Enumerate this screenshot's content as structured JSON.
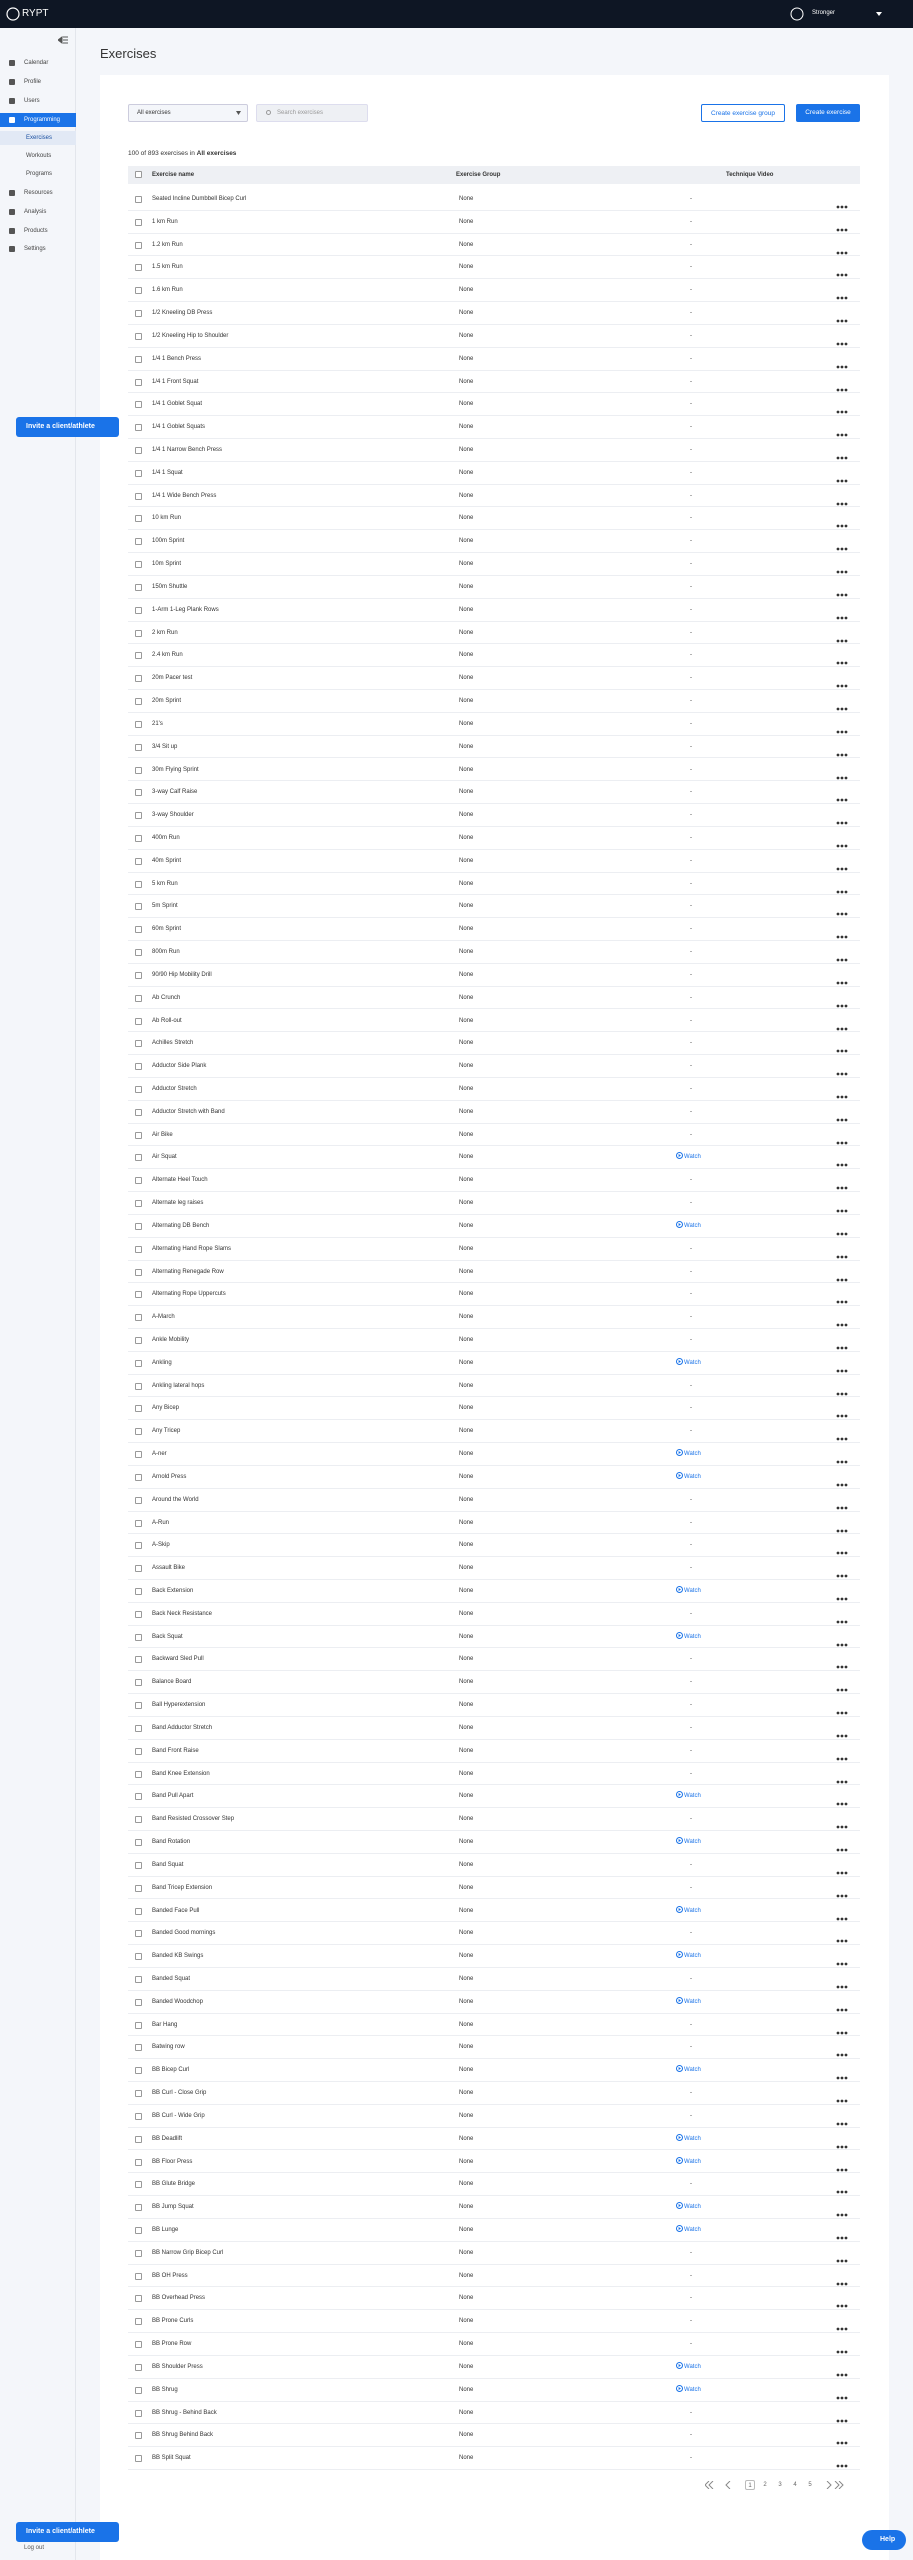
{
  "header": {
    "logo": "RYPT",
    "user": "Stronger"
  },
  "sidebar": {
    "items": [
      "Calendar",
      "Profile",
      "Users",
      "Programming",
      "Exercises",
      "Workouts",
      "Programs",
      "Resources",
      "Analysis",
      "Products",
      "Settings"
    ],
    "logout": "Log out"
  },
  "page": {
    "title": "Exercises",
    "filter": "All exercises",
    "search_placeholder": "Search exercises",
    "buttons": [
      "Create exercise group",
      "Create exercise"
    ],
    "count_text": "100 of 893 exercises in",
    "count_filter": "All exercises"
  },
  "table": {
    "columns": [
      "Exercise name",
      "Exercise Group",
      "Technique Video"
    ],
    "rows": [
      [
        "Seated Incline Dumbbell Bicep Curl",
        "None",
        "-"
      ],
      [
        "1 km Run",
        "None",
        "-"
      ],
      [
        "1.2 km Run",
        "None",
        "-"
      ],
      [
        "1.5 km Run",
        "None",
        "-"
      ],
      [
        "1.6 km Run",
        "None",
        "-"
      ],
      [
        "1/2 Kneeling DB Press",
        "None",
        "-"
      ],
      [
        "1/2 Kneeling Hip to Shoulder",
        "None",
        "-"
      ],
      [
        "1/4 1 Bench Press",
        "None",
        "-"
      ],
      [
        "1/4 1 Front Squat",
        "None",
        "-"
      ],
      [
        "1/4 1 Goblet Squat",
        "None",
        "-"
      ],
      [
        "1/4 1 Goblet Squats",
        "None",
        "-"
      ],
      [
        "1/4 1 Narrow Bench Press",
        "None",
        "-"
      ],
      [
        "1/4 1 Squat",
        "None",
        "-"
      ],
      [
        "1/4 1 Wide Bench Press",
        "None",
        "-"
      ],
      [
        "10 km Run",
        "None",
        "-"
      ],
      [
        "100m Sprint",
        "None",
        "-"
      ],
      [
        "10m Sprint",
        "None",
        "-"
      ],
      [
        "150m Shuttle",
        "None",
        "-"
      ],
      [
        "1-Arm 1-Leg Plank Rows",
        "None",
        "-"
      ],
      [
        "2 km Run",
        "None",
        "-"
      ],
      [
        "2.4 km Run",
        "None",
        "-"
      ],
      [
        "20m Pacer test",
        "None",
        "-"
      ],
      [
        "20m Sprint",
        "None",
        "-"
      ],
      [
        "21's",
        "None",
        "-"
      ],
      [
        "3/4 Sit up",
        "None",
        "-"
      ],
      [
        "30m Flying Sprint",
        "None",
        "-"
      ],
      [
        "3-way Calf Raise",
        "None",
        "-"
      ],
      [
        "3-way Shoulder",
        "None",
        "-"
      ],
      [
        "400m Run",
        "None",
        "-"
      ],
      [
        "40m Sprint",
        "None",
        "-"
      ],
      [
        "5 km Run",
        "None",
        "-"
      ],
      [
        "5m Sprint",
        "None",
        "-"
      ],
      [
        "60m Sprint",
        "None",
        "-"
      ],
      [
        "800m Run",
        "None",
        "-"
      ],
      [
        "90/90 Hip Mobility Drill",
        "None",
        "-"
      ],
      [
        "Ab Crunch",
        "None",
        "-"
      ],
      [
        "Ab Roll-out",
        "None",
        "-"
      ],
      [
        "Achilles Stretch",
        "None",
        "-"
      ],
      [
        "Adductor Side Plank",
        "None",
        "-"
      ],
      [
        "Adductor Stretch",
        "None",
        "-"
      ],
      [
        "Adductor Stretch with Band",
        "None",
        "-"
      ],
      [
        "Air Bike",
        "None",
        "-"
      ],
      [
        "Air Squat",
        "None",
        "Watch"
      ],
      [
        "Alternate Heel Touch",
        "None",
        "-"
      ],
      [
        "Alternate leg raises",
        "None",
        "-"
      ],
      [
        "Alternating DB Bench",
        "None",
        "Watch"
      ],
      [
        "Alternating Hand Rope Slams",
        "None",
        "-"
      ],
      [
        "Alternating Renegade Row",
        "None",
        "-"
      ],
      [
        "Alternating Rope Uppercuts",
        "None",
        "-"
      ],
      [
        "A-March",
        "None",
        "-"
      ],
      [
        "Ankle Mobility",
        "None",
        "-"
      ],
      [
        "Ankling",
        "None",
        "Watch"
      ],
      [
        "Ankling lateral hops",
        "None",
        "-"
      ],
      [
        "Any Bicep",
        "None",
        "-"
      ],
      [
        "Any Tricep",
        "None",
        "-"
      ],
      [
        "A-ner",
        "None",
        "Watch"
      ],
      [
        "Arnold Press",
        "None",
        "Watch"
      ],
      [
        "Around the World",
        "None",
        "-"
      ],
      [
        "A-Run",
        "None",
        "-"
      ],
      [
        "A-Skip",
        "None",
        "-"
      ],
      [
        "Assault Bike",
        "None",
        "-"
      ],
      [
        "Back Extension",
        "None",
        "Watch"
      ],
      [
        "Back Neck Resistance",
        "None",
        "-"
      ],
      [
        "Back Squat",
        "None",
        "Watch"
      ],
      [
        "Backward Sled Pull",
        "None",
        "-"
      ],
      [
        "Balance Board",
        "None",
        "-"
      ],
      [
        "Ball Hyperextension",
        "None",
        "-"
      ],
      [
        "Band Adductor Stretch",
        "None",
        "-"
      ],
      [
        "Band Front Raise",
        "None",
        "-"
      ],
      [
        "Band Knee Extension",
        "None",
        "-"
      ],
      [
        "Band Pull Apart",
        "None",
        "Watch"
      ],
      [
        "Band Resisted Crossover Step",
        "None",
        "-"
      ],
      [
        "Band Rotation",
        "None",
        "Watch"
      ],
      [
        "Band Squat",
        "None",
        "-"
      ],
      [
        "Band Tricep Extension",
        "None",
        "-"
      ],
      [
        "Banded Face Pull",
        "None",
        "Watch"
      ],
      [
        "Banded Good mornings",
        "None",
        "-"
      ],
      [
        "Banded KB Swings",
        "None",
        "Watch"
      ],
      [
        "Banded Squat",
        "None",
        "-"
      ],
      [
        "Banded Woodchop",
        "None",
        "Watch"
      ],
      [
        "Bar Hang",
        "None",
        "-"
      ],
      [
        "Batwing row",
        "None",
        "-"
      ],
      [
        "BB Bicep Curl",
        "None",
        "Watch"
      ],
      [
        "BB Curl - Close Grip",
        "None",
        "-"
      ],
      [
        "BB Curl - Wide Grip",
        "None",
        "-"
      ],
      [
        "BB Deadlift",
        "None",
        "Watch"
      ],
      [
        "BB Floor Press",
        "None",
        "Watch"
      ],
      [
        "BB Glute Bridge",
        "None",
        "-"
      ],
      [
        "BB Jump Squat",
        "None",
        "Watch"
      ],
      [
        "BB Lunge",
        "None",
        "Watch"
      ],
      [
        "BB Narrow Grip Bicep Curl",
        "None",
        "-"
      ],
      [
        "BB OH Press",
        "None",
        "-"
      ],
      [
        "BB Overhead Press",
        "None",
        "-"
      ],
      [
        "BB Prone Curls",
        "None",
        "-"
      ],
      [
        "BB Prone Row",
        "None",
        "-"
      ],
      [
        "BB Shoulder Press",
        "None",
        "Watch"
      ],
      [
        "BB Shrug",
        "None",
        "Watch"
      ],
      [
        "BB Shrug - Behind Back",
        "None",
        "-"
      ],
      [
        "BB Shrug Behind Back",
        "None",
        "-"
      ],
      [
        "BB Split Squat",
        "None",
        "-"
      ]
    ]
  },
  "pagination": {
    "pages": [
      "1",
      "2",
      "3",
      "4",
      "5"
    ]
  },
  "floating": {
    "invite": "Invite a client/athlete",
    "help": "Help"
  }
}
